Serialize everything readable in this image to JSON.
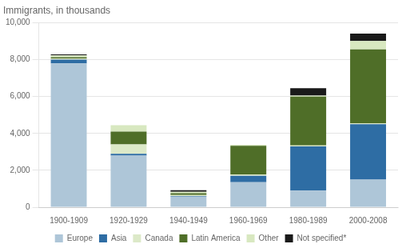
{
  "chart_data": {
    "type": "bar",
    "stacked": true,
    "title": "Immigrants, in thousands",
    "categories": [
      "1900-1909",
      "1920-1929",
      "1940-1949",
      "1960-1969",
      "1980-1989",
      "2000-2008"
    ],
    "series": [
      {
        "name": "Europe",
        "color": "#aec6d8",
        "values": [
          7800,
          2800,
          580,
          1350,
          900,
          1500
        ]
      },
      {
        "name": "Asia",
        "color": "#2e6da4",
        "values": [
          200,
          100,
          30,
          350,
          2400,
          3000
        ]
      },
      {
        "name": "Canada",
        "color": "#dce9c8",
        "values": [
          50,
          500,
          50,
          80,
          50,
          50
        ]
      },
      {
        "name": "Latin America",
        "color": "#4f6e28",
        "values": [
          80,
          700,
          100,
          1550,
          2650,
          4000
        ]
      },
      {
        "name": "Other",
        "color": "#d8e8c0",
        "values": [
          100,
          350,
          80,
          50,
          50,
          460
        ]
      },
      {
        "name": "Not specified*",
        "color": "#1a1a1a",
        "values": [
          50,
          0,
          80,
          0,
          400,
          400
        ]
      }
    ],
    "ylim": [
      0,
      10000
    ],
    "yticks": [
      0,
      {
        "value": 2000,
        "label": "2,000"
      },
      {
        "value": 4000,
        "label": "4,000"
      },
      {
        "value": 6000,
        "label": "6,000"
      },
      {
        "value": 8000,
        "label": "8,000"
      },
      {
        "value": 10000,
        "label": "10,000"
      }
    ],
    "grid": true,
    "legend": "bottom"
  }
}
